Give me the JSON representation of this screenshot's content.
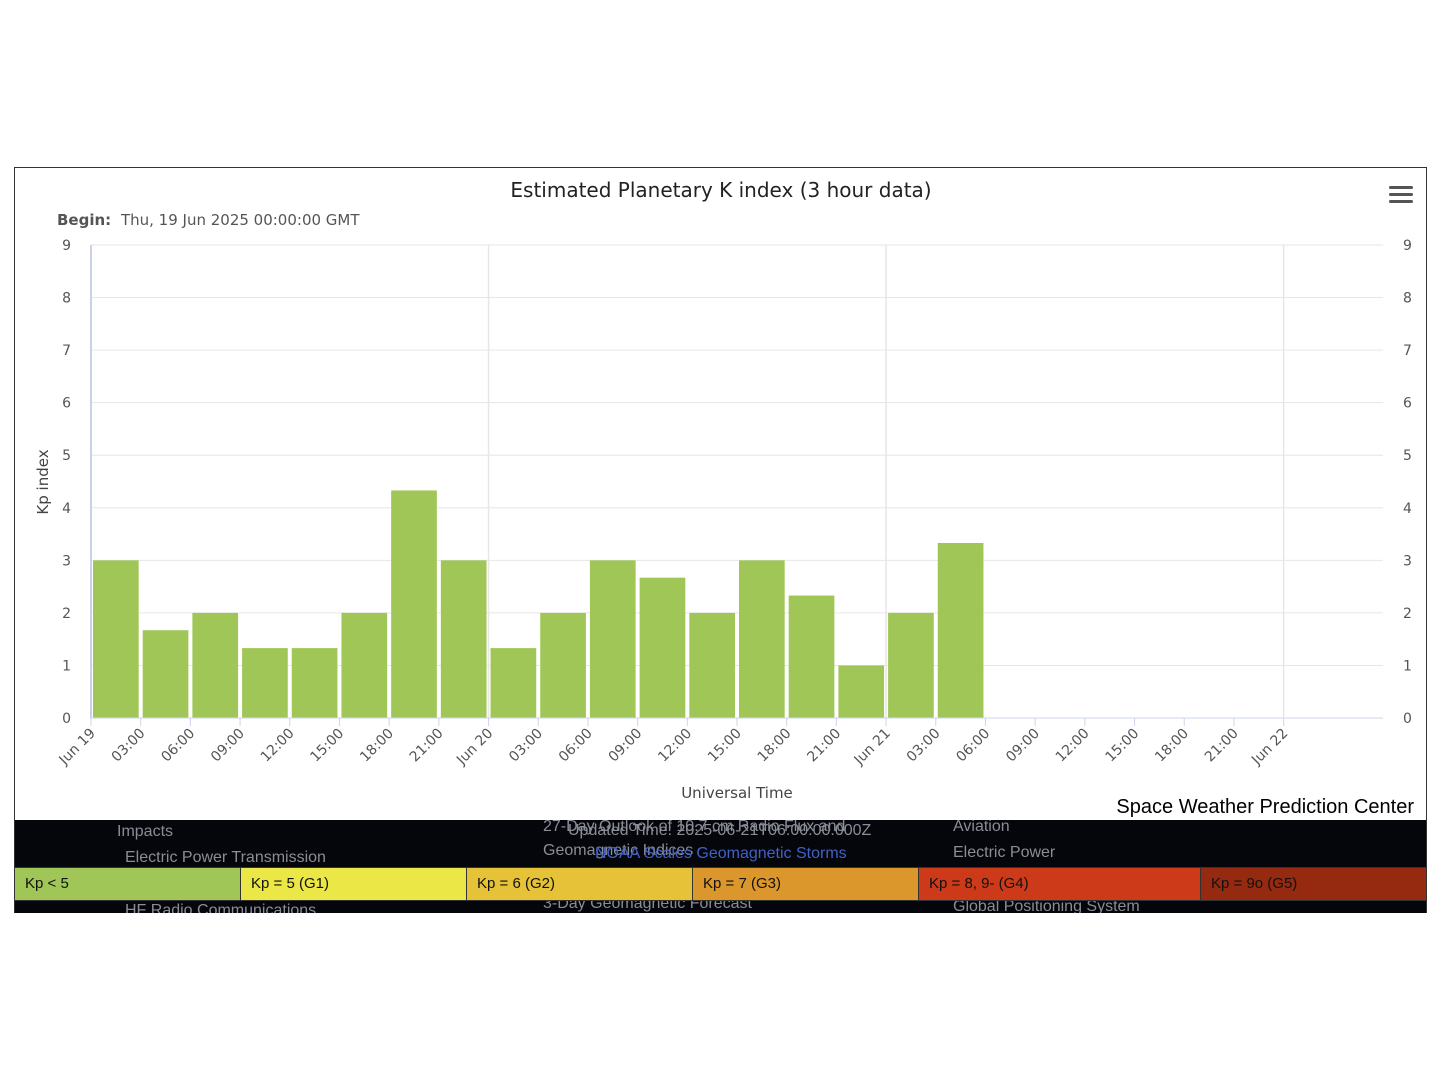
{
  "chart": {
    "title": "Estimated Planetary K index (3 hour data)",
    "subtitle_label": "Begin:",
    "subtitle_value": "Thu, 19 Jun 2025 00:00:00 GMT",
    "credit": "Space Weather Prediction Center",
    "bar_color": "#a1c658"
  },
  "chart_data": {
    "type": "bar",
    "title": "Estimated Planetary K index (3 hour data)",
    "xlabel": "Universal Time",
    "ylabel": "Kp index",
    "ylim": [
      0,
      9
    ],
    "y_ticks": [
      "0",
      "1",
      "2",
      "3",
      "4",
      "5",
      "6",
      "7",
      "8",
      "9"
    ],
    "x_tick_labels": [
      "Jun 19",
      "03:00",
      "06:00",
      "09:00",
      "12:00",
      "15:00",
      "18:00",
      "21:00",
      "Jun 20",
      "03:00",
      "06:00",
      "09:00",
      "12:00",
      "15:00",
      "18:00",
      "21:00",
      "Jun 21",
      "03:00",
      "06:00",
      "09:00",
      "12:00",
      "15:00",
      "18:00",
      "21:00",
      "Jun 22"
    ],
    "categories": [
      "Jun 19 00:00",
      "Jun 19 03:00",
      "Jun 19 06:00",
      "Jun 19 09:00",
      "Jun 19 12:00",
      "Jun 19 15:00",
      "Jun 19 18:00",
      "Jun 19 21:00",
      "Jun 20 00:00",
      "Jun 20 03:00",
      "Jun 20 06:00",
      "Jun 20 09:00",
      "Jun 20 12:00",
      "Jun 20 15:00",
      "Jun 20 18:00",
      "Jun 20 21:00",
      "Jun 21 00:00",
      "Jun 21 03:00"
    ],
    "values": [
      3.0,
      1.67,
      2.0,
      1.33,
      1.33,
      2.0,
      4.33,
      3.0,
      1.33,
      2.0,
      3.0,
      2.67,
      2.0,
      3.0,
      2.33,
      1.0,
      2.0,
      3.33
    ],
    "grid": true,
    "legend": "none"
  },
  "footer": {
    "link": "NOAA Scales Geomagnetic Storms",
    "ghost_texts": [
      "Impacts",
      "Electric Power Transmission",
      "HF Radio Communications",
      "27-Day Outlook of 10.7 cm Radio Flux and",
      "Geomagnetic Indices",
      "Updated Time: 2025-06-21T06:00:00.000Z",
      "3-Day Geomagnetic Forecast",
      "Aviation",
      "Electric Power",
      "Global Positioning System"
    ],
    "scales": [
      {
        "label": "Kp < 5",
        "color": "#a1c658"
      },
      {
        "label": "Kp = 5 (G1)",
        "color": "#ebe747"
      },
      {
        "label": "Kp = 6 (G2)",
        "color": "#e5c238"
      },
      {
        "label": "Kp = 7 (G3)",
        "color": "#db962c"
      },
      {
        "label": "Kp = 8, 9- (G4)",
        "color": "#cc3a1a"
      },
      {
        "label": "Kp = 9o (G5)",
        "color": "#962a10"
      }
    ]
  }
}
